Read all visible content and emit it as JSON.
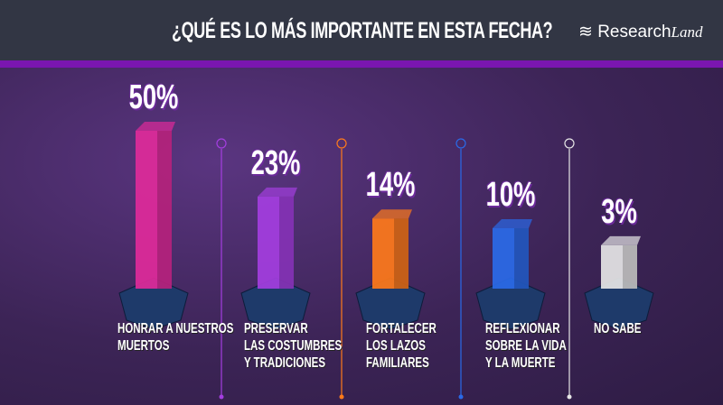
{
  "header": {
    "title": "¿QUÉ ES LO MÁS IMPORTANTE EN ESTA FECHA?",
    "logo": "ResearchLand"
  },
  "chart_data": {
    "type": "bar",
    "title": "¿QUÉ ES LO MÁS IMPORTANTE EN ESTA FECHA?",
    "categories": [
      "HONRAR A NUESTROS MUERTOS",
      "PRESERVAR LAS COSTUMBRES Y TRADICIONES",
      "FORTALECER LOS LAZOS FAMILIARES",
      "REFLEXIONAR SOBRE LA VIDA Y LA MUERTE",
      "NO SABE"
    ],
    "label_lines": [
      [
        "HONRAR A NUESTROS",
        "MUERTOS"
      ],
      [
        "PRESERVAR",
        "LAS COSTUMBRES",
        "Y TRADICIONES"
      ],
      [
        "FORTALECER",
        "LOS LAZOS",
        "FAMILIARES"
      ],
      [
        "REFLEXIONAR",
        "SOBRE LA VIDA",
        "Y LA MUERTE"
      ],
      [
        "NO SABE"
      ]
    ],
    "values": [
      50,
      23,
      14,
      10,
      3
    ],
    "value_labels": [
      "50%",
      "23%",
      "14%",
      "10%",
      "3%"
    ],
    "colors": [
      "#e02a9a",
      "#a43ee0",
      "#ff7a1a",
      "#2a6ae8",
      "#e6e6e6"
    ],
    "unit": "%"
  }
}
